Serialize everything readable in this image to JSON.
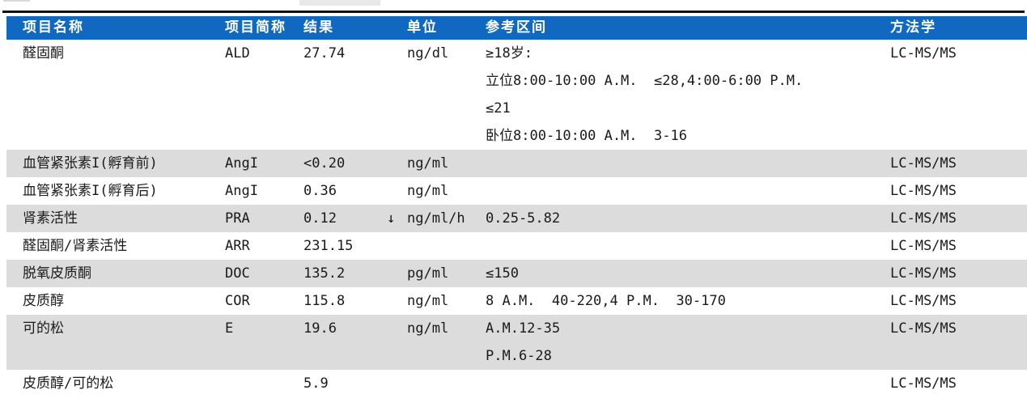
{
  "colors": {
    "header_bg": "#1168C0",
    "header_text": "#FFFFFF",
    "row_stripe": "#DCDCDC",
    "rule": "#111111",
    "body_text": "#1A1A1A"
  },
  "table": {
    "header": {
      "columns": [
        "项目名称",
        "项目简称",
        "结果",
        "单位",
        "参考区间",
        "方法学"
      ]
    },
    "rows": [
      {
        "name": "醛固酮",
        "abbr": "ALD",
        "result": "27.74",
        "flag": "",
        "unit": "ng/dl",
        "ref_lines": [
          "≥18岁:",
          "立位8:00-10:00 A.M.  ≤28,4:00-6:00 P.M.",
          "≤21",
          "卧位8:00-10:00 A.M.  3-16"
        ],
        "method": "LC-MS/MS",
        "shaded": false
      },
      {
        "name": "血管紧张素I(孵育前)",
        "abbr": "AngI",
        "result": "<0.20",
        "flag": "",
        "unit": "ng/ml",
        "ref_lines": [],
        "method": "LC-MS/MS",
        "shaded": true
      },
      {
        "name": "血管紧张素I(孵育后)",
        "abbr": "AngI",
        "result": "0.36",
        "flag": "",
        "unit": "ng/ml",
        "ref_lines": [],
        "method": "LC-MS/MS",
        "shaded": false
      },
      {
        "name": "肾素活性",
        "abbr": "PRA",
        "result": "0.12",
        "flag": "↓",
        "unit": "ng/ml/h",
        "ref_lines": [
          "0.25-5.82"
        ],
        "method": "LC-MS/MS",
        "shaded": true
      },
      {
        "name": "醛固酮/肾素活性",
        "abbr": "ARR",
        "result": "231.15",
        "flag": "",
        "unit": "",
        "ref_lines": [],
        "method": "LC-MS/MS",
        "shaded": false
      },
      {
        "name": "脱氧皮质酮",
        "abbr": "DOC",
        "result": "135.2",
        "flag": "",
        "unit": "pg/ml",
        "ref_lines": [
          "≤150"
        ],
        "method": "LC-MS/MS",
        "shaded": true
      },
      {
        "name": "皮质醇",
        "abbr": "COR",
        "result": "115.8",
        "flag": "",
        "unit": "ng/ml",
        "ref_lines": [
          "8 A.M.  40-220,4 P.M.  30-170"
        ],
        "method": "LC-MS/MS",
        "shaded": false
      },
      {
        "name": "可的松",
        "abbr": "E",
        "result": "19.6",
        "flag": "",
        "unit": "ng/ml",
        "ref_lines": [
          "A.M.12-35",
          "P.M.6-28"
        ],
        "method": "LC-MS/MS",
        "shaded": true
      },
      {
        "name": "皮质醇/可的松",
        "abbr": "",
        "result": "5.9",
        "flag": "",
        "unit": "",
        "ref_lines": [],
        "method": "LC-MS/MS",
        "shaded": false
      }
    ]
  }
}
